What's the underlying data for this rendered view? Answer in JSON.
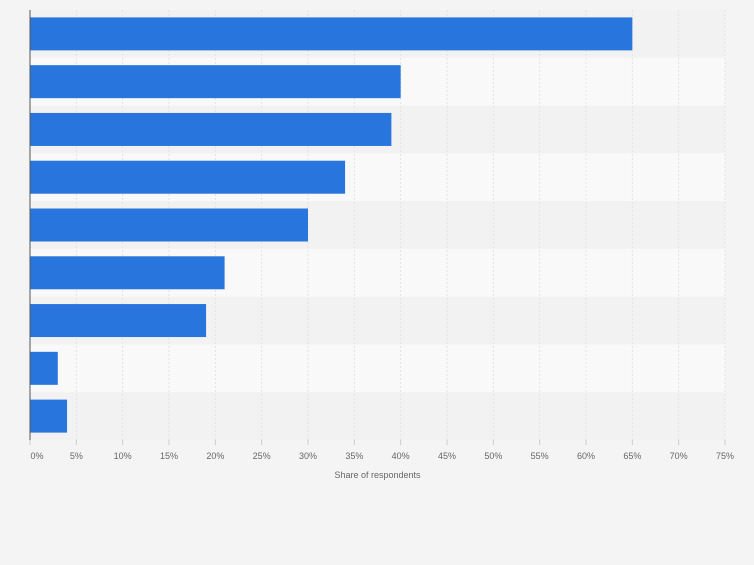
{
  "colors": {
    "background": "#f4f4f4",
    "plot_band_light": "#f9f9f9",
    "plot_band_dark": "#f2f2f2",
    "bar": "#2876dd",
    "grid": "#e3e3e3",
    "axis": "#555555",
    "tick_text": "#666666"
  },
  "chart_data": {
    "type": "bar",
    "orientation": "horizontal",
    "categories": [
      "",
      "",
      "",
      "",
      "",
      "",
      "",
      "",
      ""
    ],
    "values": [
      65,
      40,
      39,
      34,
      30,
      21,
      19,
      3,
      4
    ],
    "xlabel": "Share of respondents",
    "ylabel": "",
    "xlim": [
      0,
      75
    ],
    "x_ticks": [
      0,
      5,
      10,
      15,
      20,
      25,
      30,
      35,
      40,
      45,
      50,
      55,
      60,
      65,
      70,
      75
    ],
    "x_tick_labels": [
      "0%",
      "5%",
      "10%",
      "15%",
      "20%",
      "25%",
      "30%",
      "35%",
      "40%",
      "45%",
      "50%",
      "55%",
      "60%",
      "65%",
      "70%",
      "75%"
    ],
    "grid": true,
    "legend": "none"
  }
}
